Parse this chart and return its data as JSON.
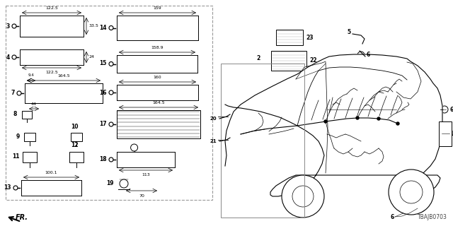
{
  "bg_color": "#ffffff",
  "diagram_code": "TBAJB0703",
  "fig_w": 6.4,
  "fig_h": 3.2,
  "dpi": 100
}
